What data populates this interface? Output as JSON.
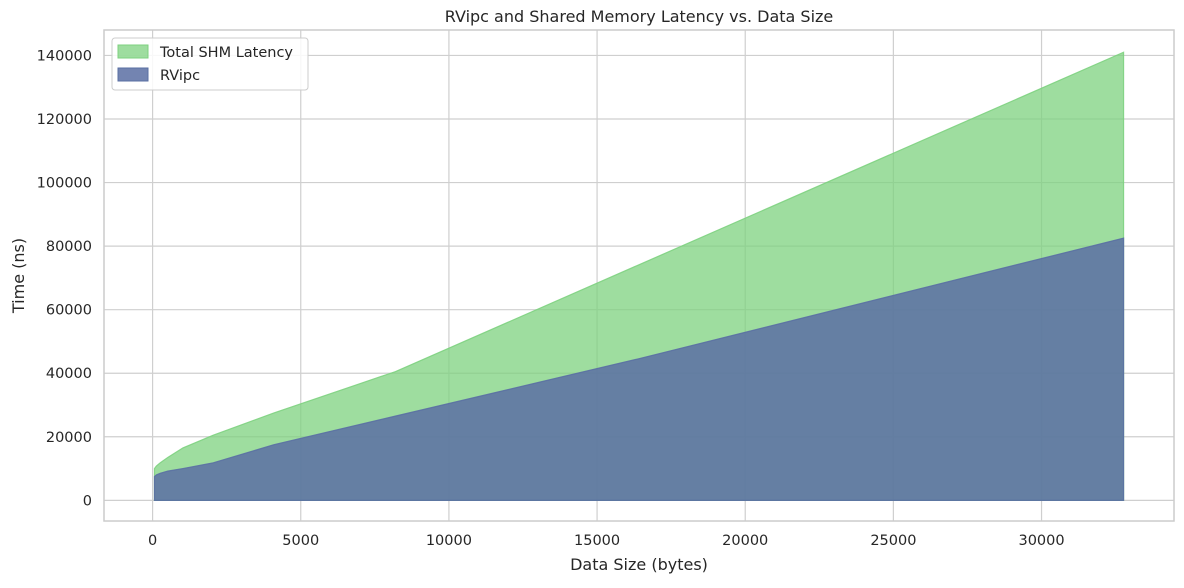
{
  "chart_data": {
    "type": "area",
    "title": "RVipc and Shared Memory Latency vs. Data Size",
    "xlabel": "Data Size (bytes)",
    "ylabel": "Time (ns)",
    "xlim": [
      -1640,
      34470
    ],
    "ylim": [
      -6500,
      148000
    ],
    "xticks": [
      0,
      5000,
      10000,
      15000,
      20000,
      25000,
      30000
    ],
    "yticks": [
      0,
      20000,
      40000,
      60000,
      80000,
      100000,
      120000,
      140000
    ],
    "grid": true,
    "legend_position": "top-left",
    "x": [
      64,
      128,
      256,
      512,
      1024,
      2048,
      4096,
      8192,
      16384,
      32768
    ],
    "series": [
      {
        "name": "Total SHM Latency",
        "color": "#7dd17f",
        "values": [
          10000,
          10800,
          11800,
          13500,
          16500,
          20500,
          27500,
          40500,
          74000,
          141000
        ]
      },
      {
        "name": "RVipc",
        "color": "#5a6fa3",
        "values": [
          7500,
          8000,
          8500,
          9200,
          10000,
          11800,
          17500,
          26500,
          44500,
          82500
        ]
      }
    ]
  }
}
